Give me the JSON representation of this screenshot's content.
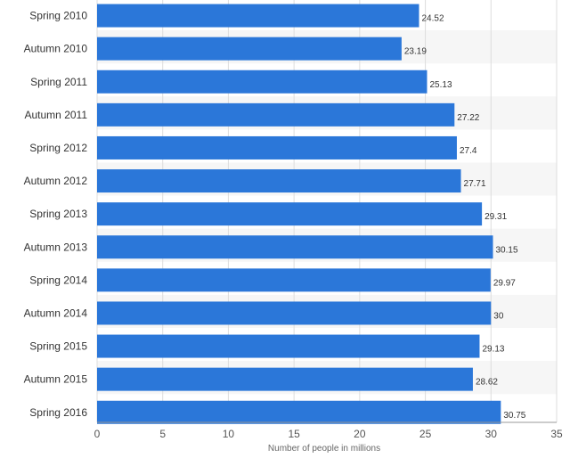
{
  "chart_data": {
    "type": "bar",
    "orientation": "horizontal",
    "categories": [
      "Spring 2010",
      "Autumn 2010",
      "Spring 2011",
      "Autumn 2011",
      "Spring 2012",
      "Autumn 2012",
      "Spring 2013",
      "Autumn 2013",
      "Spring 2014",
      "Autumn 2014",
      "Spring 2015",
      "Autumn 2015",
      "Spring 2016"
    ],
    "values": [
      24.52,
      23.19,
      25.13,
      27.22,
      27.4,
      27.71,
      29.31,
      30.15,
      29.97,
      30,
      29.13,
      28.62,
      30.75
    ],
    "value_labels": [
      "24.52",
      "23.19",
      "25.13",
      "27.22",
      "27.4",
      "27.71",
      "29.31",
      "30.15",
      "29.97",
      "30",
      "29.13",
      "28.62",
      "30.75"
    ],
    "xlabel": "Number of people in millions",
    "ylabel": "",
    "xlim": [
      0,
      35
    ],
    "x_ticks": [
      "0",
      "5",
      "10",
      "15",
      "20",
      "25",
      "30",
      "35"
    ],
    "grid": true,
    "bar_color": "#2b77d9",
    "stripe_color": "#f6f6f6",
    "grid_color": "#dddddd"
  }
}
